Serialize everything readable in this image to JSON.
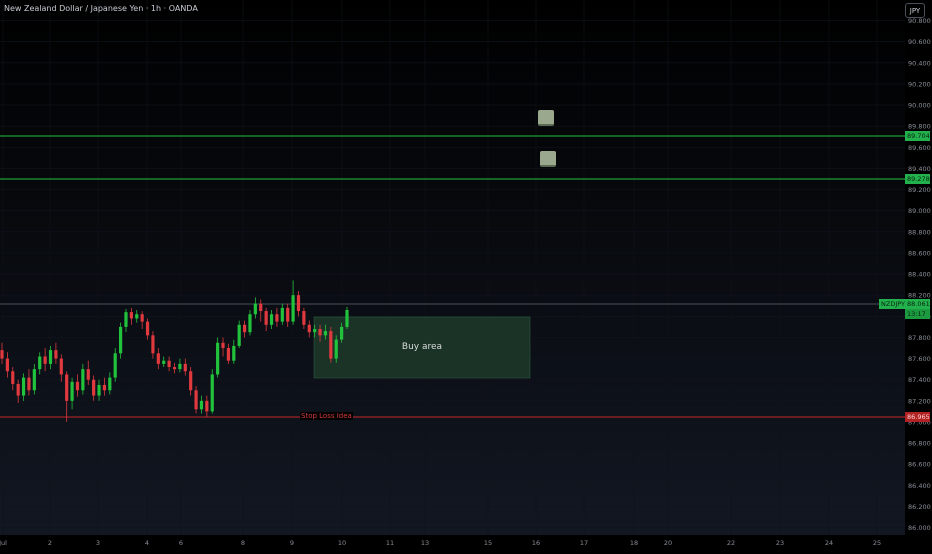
{
  "chart_data": {
    "type": "candlestick",
    "title": "New Zealand Dollar / Japanese Yen · 1h · OANDA",
    "currency": "JPY",
    "symbol": "NZDJPY",
    "x_ticks": [
      "Jul",
      "2",
      "3",
      "4",
      "6",
      "8",
      "9",
      "10",
      "11",
      "13",
      "15",
      "16",
      "17",
      "18",
      "20",
      "22",
      "23",
      "24",
      "25"
    ],
    "y_ticks": [
      "86.000",
      "86.200",
      "86.400",
      "86.600",
      "86.800",
      "87.000",
      "87.200",
      "87.400",
      "87.600",
      "87.800",
      "88.000",
      "88.200",
      "88.400",
      "88.600",
      "88.800",
      "89.000",
      "89.200",
      "89.400",
      "89.600",
      "89.800",
      "90.000",
      "90.200",
      "90.400",
      "90.600",
      "90.800"
    ],
    "ylim": [
      85.93,
      90.9
    ],
    "price_tags": {
      "tp2": "89.704",
      "tp1": "89.278",
      "current": "88.061",
      "countdown": "13:17",
      "stop": "86.965"
    },
    "annotations": {
      "buy_area": "Buy area",
      "stop_loss": "Stop Loss Idea"
    },
    "candles": [
      [
        87.68,
        87.6,
        87.75,
        87.55
      ],
      [
        87.6,
        87.48,
        87.66,
        87.42
      ],
      [
        87.48,
        87.36,
        87.52,
        87.3
      ],
      [
        87.36,
        87.25,
        87.4,
        87.18
      ],
      [
        87.25,
        87.42,
        87.46,
        87.2
      ],
      [
        87.42,
        87.3,
        87.5,
        87.25
      ],
      [
        87.3,
        87.5,
        87.55,
        87.26
      ],
      [
        87.5,
        87.62,
        87.66,
        87.45
      ],
      [
        87.62,
        87.55,
        87.7,
        87.48
      ],
      [
        87.55,
        87.68,
        87.72,
        87.5
      ],
      [
        87.68,
        87.6,
        87.75,
        87.55
      ],
      [
        87.6,
        87.45,
        87.64,
        87.38
      ],
      [
        87.45,
        87.2,
        87.48,
        87.0
      ],
      [
        87.2,
        87.38,
        87.42,
        87.12
      ],
      [
        87.38,
        87.3,
        87.45,
        87.24
      ],
      [
        87.3,
        87.5,
        87.55,
        87.26
      ],
      [
        87.5,
        87.4,
        87.58,
        87.35
      ],
      [
        87.4,
        87.25,
        87.44,
        87.2
      ],
      [
        87.25,
        87.35,
        87.4,
        87.2
      ],
      [
        87.35,
        87.3,
        87.42,
        87.25
      ],
      [
        87.3,
        87.42,
        87.47,
        87.26
      ],
      [
        87.42,
        87.65,
        87.7,
        87.38
      ],
      [
        87.65,
        87.9,
        87.94,
        87.6
      ],
      [
        87.9,
        88.04,
        88.07,
        87.85
      ],
      [
        88.04,
        87.98,
        88.08,
        87.92
      ],
      [
        87.98,
        88.02,
        88.06,
        87.94
      ],
      [
        88.02,
        87.95,
        88.05,
        87.88
      ],
      [
        87.95,
        87.82,
        87.98,
        87.78
      ],
      [
        87.82,
        87.65,
        87.86,
        87.6
      ],
      [
        87.65,
        87.55,
        87.7,
        87.5
      ],
      [
        87.55,
        87.58,
        87.62,
        87.52
      ],
      [
        87.58,
        87.52,
        87.62,
        87.48
      ],
      [
        87.52,
        87.5,
        87.56,
        87.46
      ],
      [
        87.5,
        87.55,
        87.6,
        87.47
      ],
      [
        87.55,
        87.48,
        87.6,
        87.44
      ],
      [
        87.48,
        87.3,
        87.52,
        87.25
      ],
      [
        87.3,
        87.12,
        87.34,
        87.08
      ],
      [
        87.12,
        87.2,
        87.25,
        87.08
      ],
      [
        87.2,
        87.1,
        87.25,
        87.05
      ],
      [
        87.1,
        87.45,
        87.5,
        87.08
      ],
      [
        87.45,
        87.75,
        87.8,
        87.42
      ],
      [
        87.75,
        87.7,
        87.8,
        87.62
      ],
      [
        87.7,
        87.58,
        87.74,
        87.55
      ],
      [
        87.58,
        87.72,
        87.78,
        87.55
      ],
      [
        87.72,
        87.92,
        87.96,
        87.7
      ],
      [
        87.92,
        87.85,
        87.96,
        87.8
      ],
      [
        87.85,
        88.02,
        88.06,
        87.82
      ],
      [
        88.02,
        88.12,
        88.18,
        87.98
      ],
      [
        88.12,
        88.05,
        88.16,
        87.95
      ],
      [
        88.05,
        87.92,
        88.08,
        87.86
      ],
      [
        87.92,
        88.02,
        88.06,
        87.88
      ],
      [
        88.02,
        87.95,
        88.08,
        87.9
      ],
      [
        87.95,
        88.08,
        88.12,
        87.92
      ],
      [
        88.08,
        87.95,
        88.12,
        87.9
      ],
      [
        87.95,
        88.2,
        88.34,
        87.92
      ],
      [
        88.2,
        88.05,
        88.24,
        88.0
      ],
      [
        88.05,
        87.92,
        88.08,
        87.88
      ],
      [
        87.92,
        87.85,
        87.96,
        87.8
      ],
      [
        87.85,
        87.88,
        87.92,
        87.8
      ],
      [
        87.88,
        87.82,
        87.92,
        87.76
      ],
      [
        87.82,
        87.86,
        87.92,
        87.78
      ],
      [
        87.86,
        87.6,
        87.9,
        87.56
      ],
      [
        87.6,
        87.78,
        87.82,
        87.56
      ],
      [
        87.78,
        87.9,
        87.94,
        87.75
      ],
      [
        87.9,
        88.06,
        88.09,
        87.88
      ]
    ]
  }
}
